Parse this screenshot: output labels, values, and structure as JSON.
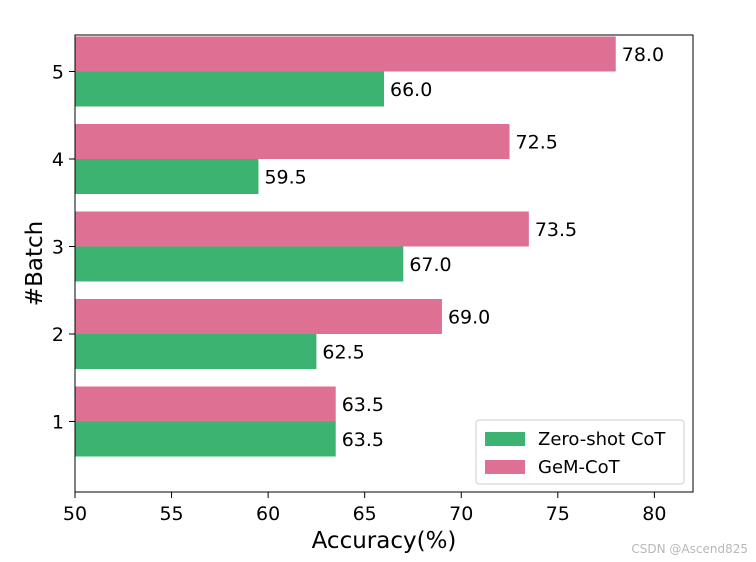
{
  "chart_data": {
    "type": "bar",
    "orientation": "horizontal",
    "categories": [
      "1",
      "2",
      "3",
      "4",
      "5"
    ],
    "series": [
      {
        "name": "Zero-shot CoT",
        "values": [
          63.5,
          62.5,
          67.0,
          59.5,
          66.0
        ],
        "color": "#3cb371"
      },
      {
        "name": "GeM-CoT",
        "values": [
          63.5,
          69.0,
          73.5,
          72.5,
          78.0
        ],
        "color": "#de7093"
      }
    ],
    "xlabel": "Accuracy(%)",
    "ylabel": "#Batch",
    "xlim": [
      50,
      82
    ],
    "xticks": [
      "50",
      "55",
      "60",
      "65",
      "70",
      "75",
      "80"
    ],
    "grid": false,
    "legend_position": "bottom-right"
  },
  "watermark": "CSDN @Ascend825"
}
